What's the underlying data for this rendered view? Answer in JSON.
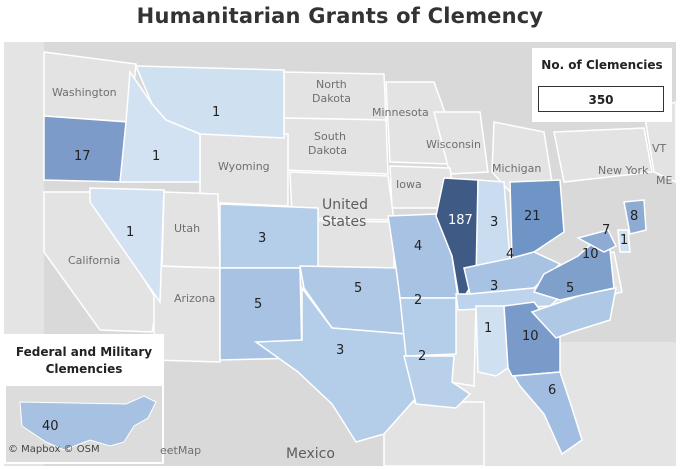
{
  "title": "Humanitarian Grants of Clemency",
  "legend": {
    "title": "No. of Clemencies",
    "total": "350"
  },
  "federal": {
    "title_line1": "Federal and Military",
    "title_line2": "Clemencies",
    "value": "40"
  },
  "attribution": {
    "mapbox": "© Mapbox",
    "osm": "© OSM",
    "streetmap": "eetMap"
  },
  "colors": {
    "land": "#dcdcdc",
    "low": "#c7dcf0",
    "mid": "#a9c4e3",
    "high": "#6f94c6",
    "top": "#3e5a84"
  },
  "background_labels": {
    "washington": "Washington",
    "north_dakota": "North\nDakota",
    "south_dakota": "South\nDakota",
    "minnesota": "Minnesota",
    "wisconsin": "Wisconsin",
    "michigan": "Michigan",
    "wyoming": "Wyoming",
    "iowa": "Iowa",
    "united_states": "United\nStates",
    "utah": "Utah",
    "california": "California",
    "arizona": "Arizona",
    "new_york": "New York",
    "mexico": "Mexico",
    "vt": "VT",
    "me": "ME"
  },
  "states": [
    {
      "name": "Montana",
      "value": "1"
    },
    {
      "name": "Oregon",
      "value": "17"
    },
    {
      "name": "Idaho",
      "value": "1"
    },
    {
      "name": "Nevada",
      "value": "1"
    },
    {
      "name": "Colorado",
      "value": "3"
    },
    {
      "name": "New Mexico",
      "value": "5"
    },
    {
      "name": "Oklahoma",
      "value": "5"
    },
    {
      "name": "Texas",
      "value": "3"
    },
    {
      "name": "Missouri",
      "value": "4"
    },
    {
      "name": "Illinois",
      "value": "187"
    },
    {
      "name": "Indiana",
      "value": "3"
    },
    {
      "name": "Ohio",
      "value": "21"
    },
    {
      "name": "Kentucky",
      "value": "4"
    },
    {
      "name": "Tennessee",
      "value": "3"
    },
    {
      "name": "Arkansas",
      "value": "2"
    },
    {
      "name": "Louisiana",
      "value": "2"
    },
    {
      "name": "Alabama",
      "value": "1"
    },
    {
      "name": "Georgia",
      "value": "10"
    },
    {
      "name": "Florida",
      "value": "6"
    },
    {
      "name": "North Carolina",
      "value": "5"
    },
    {
      "name": "Virginia",
      "value": "10"
    },
    {
      "name": "Maryland",
      "value": "7"
    },
    {
      "name": "Delaware",
      "value": "1"
    },
    {
      "name": "New Jersey",
      "value": "8"
    }
  ]
}
